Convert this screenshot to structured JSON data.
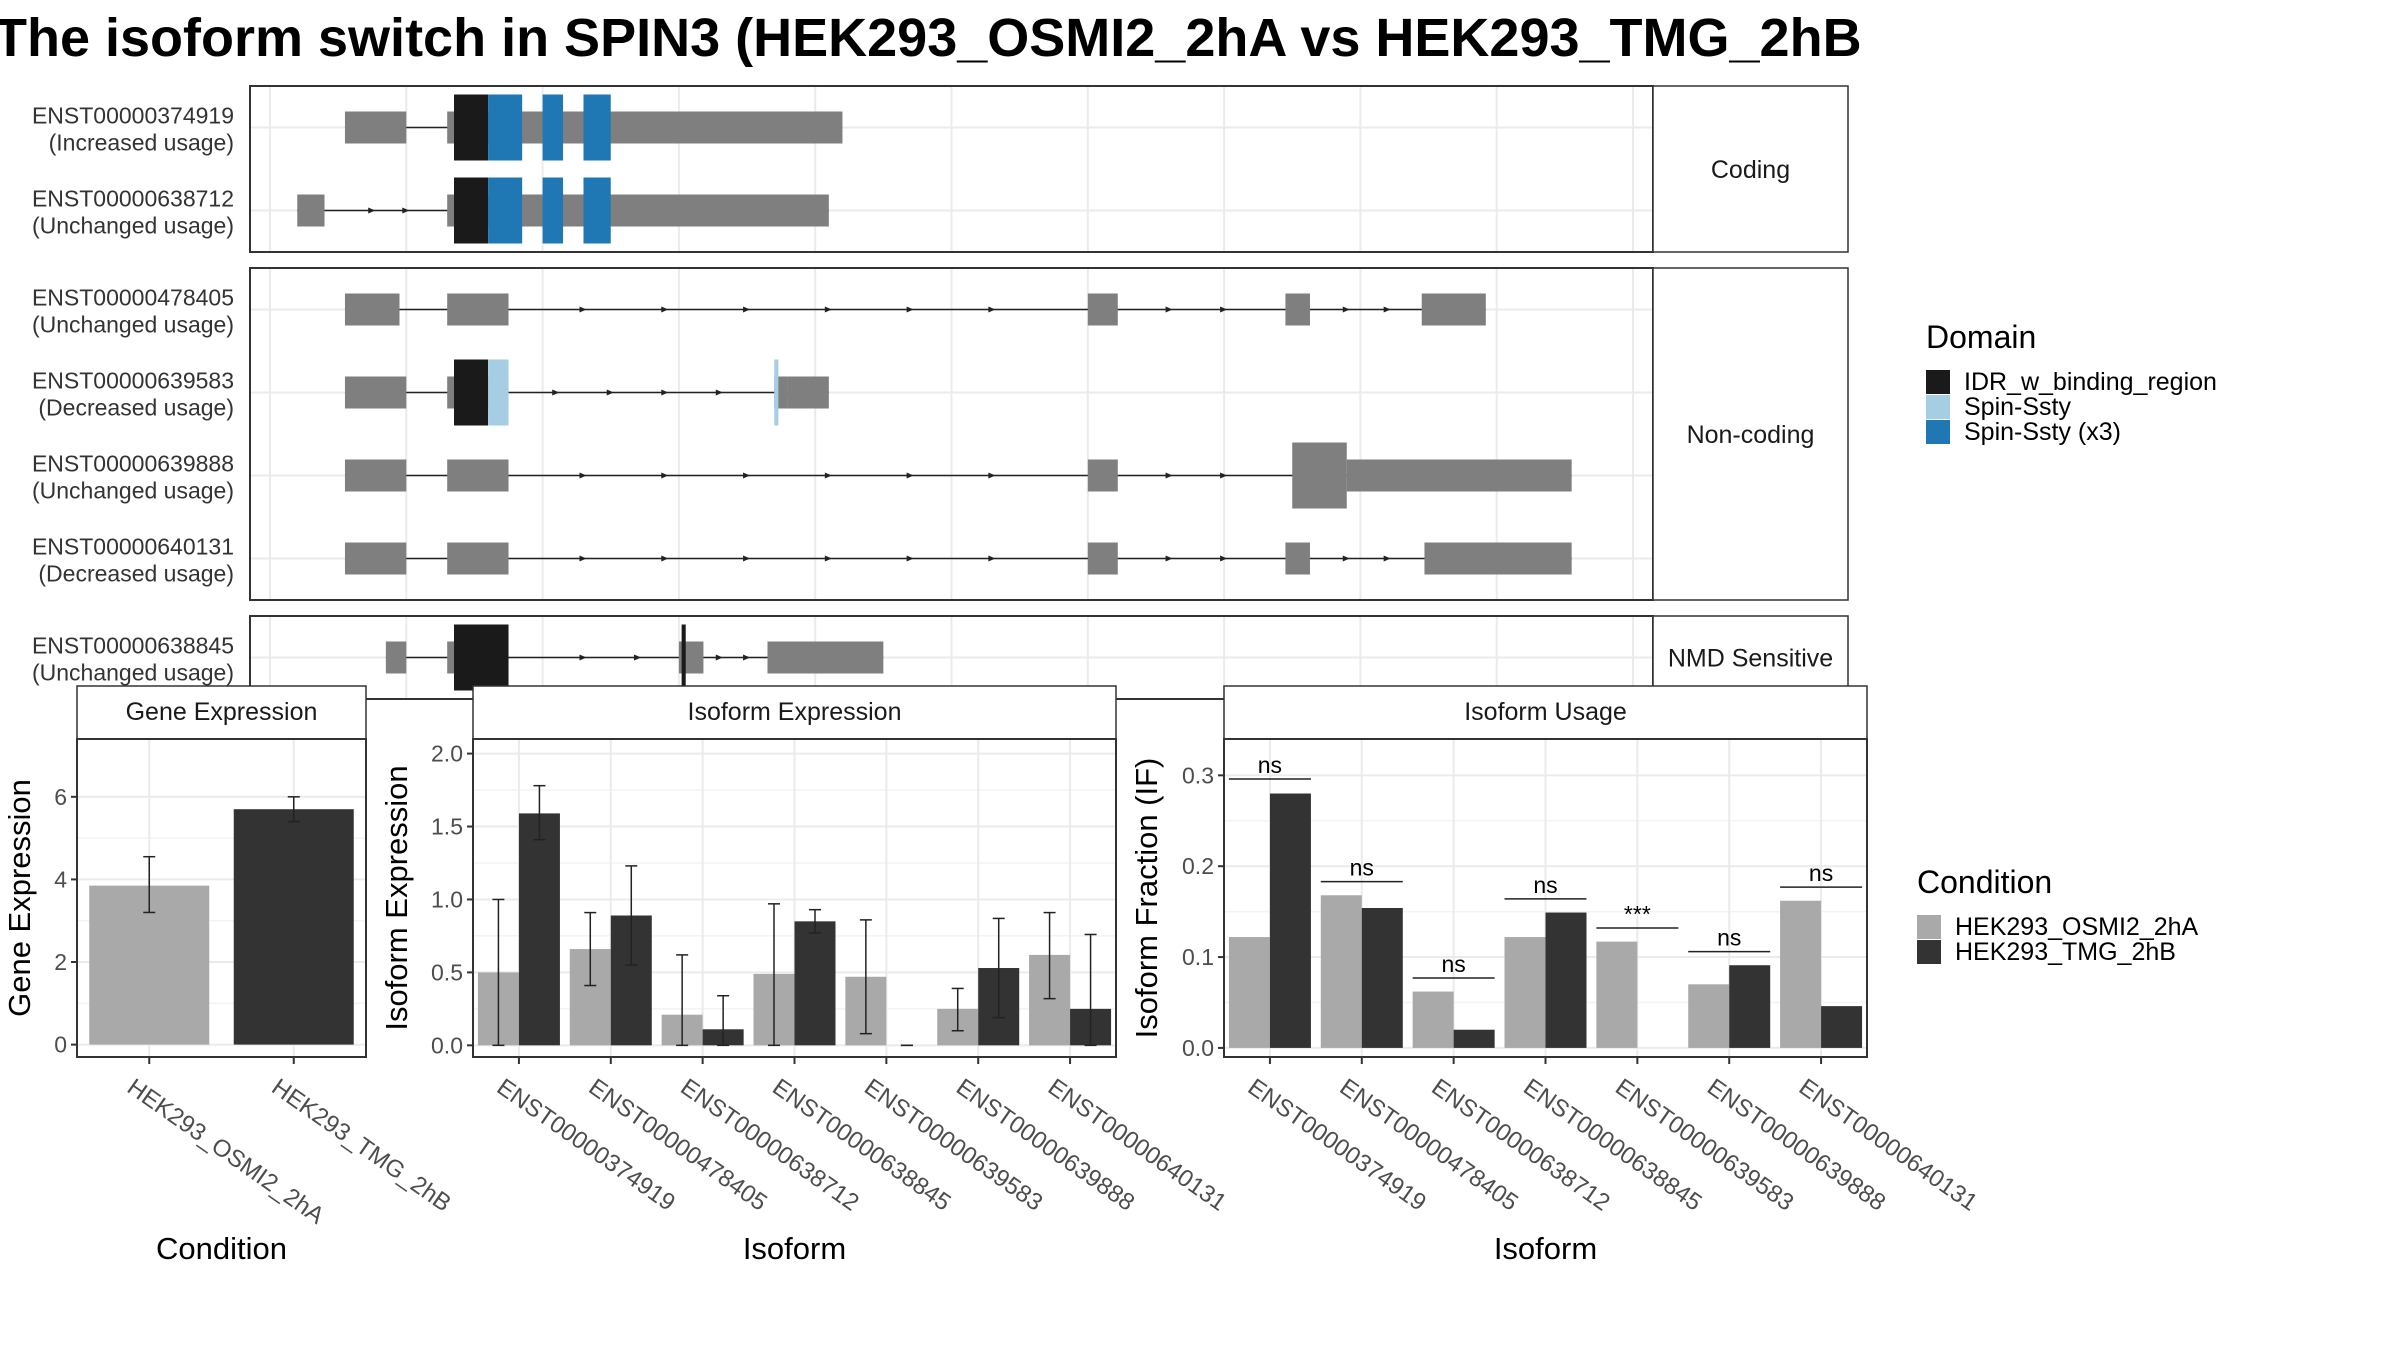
{
  "title": "The isoform switch in SPIN3 (HEK293_OSMI2_2hA vs HEK293_TMG_2hB",
  "colors": {
    "exon": "#7f7f7f",
    "IDR_w_binding_region": "#1a1a1a",
    "Spin-Ssty": "#a6cee3",
    "Spin-Ssty (x3)": "#1f78b4",
    "cond_a": "#a9a9a9",
    "cond_b": "#333333"
  },
  "structure": {
    "x_range": [
      0,
      1000
    ],
    "panels": [
      {
        "label": "Coding",
        "transcripts": [
          {
            "id": "ENST00000374919",
            "usage": "(Increased usage)",
            "exons": [
              [
                55,
                100,
                "n"
              ],
              [
                130,
                420,
                "n"
              ]
            ],
            "domains": [
              [
                135,
                160,
                "IDR_w_binding_region"
              ],
              [
                160,
                185,
                "Spin-Ssty (x3)"
              ],
              [
                200,
                215,
                "Spin-Ssty (x3)"
              ],
              [
                230,
                250,
                "Spin-Ssty (x3)"
              ]
            ],
            "arrows": []
          },
          {
            "id": "ENST00000638712",
            "usage": "(Unchanged usage)",
            "exons": [
              [
                20,
                40,
                "n"
              ],
              [
                130,
                410,
                "n"
              ]
            ],
            "domains": [
              [
                135,
                160,
                "IDR_w_binding_region"
              ],
              [
                160,
                185,
                "Spin-Ssty (x3)"
              ],
              [
                200,
                215,
                "Spin-Ssty (x3)"
              ],
              [
                230,
                250,
                "Spin-Ssty (x3)"
              ]
            ],
            "arrows": [
              75,
              100
            ]
          }
        ]
      },
      {
        "label": "Non-coding",
        "transcripts": [
          {
            "id": "ENST00000478405",
            "usage": "(Unchanged usage)",
            "exons": [
              [
                55,
                95,
                "n"
              ],
              [
                130,
                175,
                "n"
              ],
              [
                600,
                622,
                "n"
              ],
              [
                745,
                763,
                "n"
              ],
              [
                845,
                892,
                "n"
              ]
            ],
            "domains": [],
            "arrows": [
              230,
              290,
              350,
              410,
              470,
              530,
              660,
              700,
              790,
              820
            ]
          },
          {
            "id": "ENST00000639583",
            "usage": "(Decreased usage)",
            "exons": [
              [
                55,
                100,
                "n"
              ],
              [
                130,
                175,
                "n"
              ],
              [
                370,
                380,
                "n"
              ],
              [
                380,
                410,
                "n"
              ]
            ],
            "domains": [
              [
                135,
                160,
                "IDR_w_binding_region"
              ],
              [
                160,
                175,
                "Spin-Ssty"
              ],
              [
                370,
                373,
                "Spin-Ssty"
              ]
            ],
            "arrows": [
              210,
              250,
              290,
              330
            ]
          },
          {
            "id": "ENST00000639888",
            "usage": "(Unchanged usage)",
            "exons": [
              [
                55,
                100,
                "n"
              ],
              [
                130,
                175,
                "n"
              ],
              [
                600,
                622,
                "n"
              ],
              [
                750,
                790,
                "t"
              ],
              [
                790,
                955,
                "n"
              ]
            ],
            "domains": [],
            "arrows": [
              230,
              290,
              350,
              410,
              470,
              530,
              660,
              700
            ]
          },
          {
            "id": "ENST00000640131",
            "usage": "(Decreased usage)",
            "exons": [
              [
                55,
                100,
                "n"
              ],
              [
                130,
                175,
                "n"
              ],
              [
                600,
                622,
                "n"
              ],
              [
                745,
                763,
                "n"
              ],
              [
                847,
                955,
                "n"
              ]
            ],
            "domains": [],
            "arrows": [
              230,
              290,
              350,
              410,
              470,
              530,
              660,
              700,
              790,
              820
            ]
          }
        ]
      },
      {
        "label": "NMD Sensitive",
        "transcripts": [
          {
            "id": "ENST00000638845",
            "usage": "(Unchanged usage)",
            "exons": [
              [
                85,
                100,
                "n"
              ],
              [
                130,
                175,
                "n"
              ],
              [
                300,
                318,
                "n"
              ],
              [
                365,
                450,
                "n"
              ]
            ],
            "domains": [
              [
                135,
                175,
                "IDR_w_binding_region"
              ],
              [
                302,
                305,
                "IDR_w_binding_region"
              ]
            ],
            "arrows": [
              230,
              270,
              330,
              350
            ]
          }
        ]
      }
    ]
  },
  "legend_domain": {
    "title": "Domain",
    "items": [
      {
        "label": "IDR_w_binding_region",
        "color": "#1a1a1a"
      },
      {
        "label": "Spin-Ssty",
        "color": "#a6cee3"
      },
      {
        "label": "Spin-Ssty (x3)",
        "color": "#1f78b4"
      }
    ]
  },
  "legend_condition": {
    "title": "Condition",
    "items": [
      {
        "label": "HEK293_OSMI2_2hA",
        "color": "#a9a9a9"
      },
      {
        "label": "HEK293_TMG_2hB",
        "color": "#333333"
      }
    ]
  },
  "chart_data": [
    {
      "type": "bar",
      "title": "Gene Expression",
      "xlabel": "Condition",
      "ylabel": "Gene Expression",
      "ylim": [
        -0.3,
        7.4
      ],
      "yticks": [
        0,
        2,
        4,
        6
      ],
      "categories": [
        "HEK293_OSMI2_2hA",
        "HEK293_TMG_2hB"
      ],
      "values": [
        3.85,
        5.7
      ],
      "errors": [
        [
          3.2,
          4.55
        ],
        [
          5.4,
          6.0
        ]
      ]
    },
    {
      "type": "bar",
      "title": "Isoform Expression",
      "xlabel": "Isoform",
      "ylabel": "Isoform Expression",
      "ylim": [
        -0.08,
        2.1
      ],
      "yticks": [
        0.0,
        0.5,
        1.0,
        1.5,
        2.0
      ],
      "categories": [
        "ENST00000374919",
        "ENST00000478405",
        "ENST00000638712",
        "ENST00000638845",
        "ENST00000639583",
        "ENST00000639888",
        "ENST00000640131"
      ],
      "series": [
        {
          "name": "HEK293_OSMI2_2hA",
          "values": [
            0.5,
            0.66,
            0.21,
            0.49,
            0.47,
            0.25,
            0.62
          ],
          "errors": [
            [
              0.0,
              1.0
            ],
            [
              0.41,
              0.91
            ],
            [
              0.0,
              0.62
            ],
            [
              0.0,
              0.97
            ],
            [
              0.08,
              0.86
            ],
            [
              0.1,
              0.39
            ],
            [
              0.32,
              0.91
            ]
          ]
        },
        {
          "name": "HEK293_TMG_2hB",
          "values": [
            1.59,
            0.89,
            0.11,
            0.85,
            0.0,
            0.53,
            0.25
          ],
          "errors": [
            [
              1.41,
              1.78
            ],
            [
              0.55,
              1.23
            ],
            [
              0.0,
              0.34
            ],
            [
              0.77,
              0.93
            ],
            [
              0.0,
              0.0
            ],
            [
              0.19,
              0.87
            ],
            [
              0.0,
              0.76
            ]
          ]
        }
      ]
    },
    {
      "type": "bar",
      "title": "Isoform Usage",
      "xlabel": "Isoform",
      "ylabel": "Isoform Fraction (IF)",
      "ylim": [
        -0.01,
        0.34
      ],
      "yticks": [
        0.0,
        0.1,
        0.2,
        0.3
      ],
      "categories": [
        "ENST00000374919",
        "ENST00000478405",
        "ENST00000638712",
        "ENST00000638845",
        "ENST00000639583",
        "ENST00000639888",
        "ENST00000640131"
      ],
      "series": [
        {
          "name": "HEK293_OSMI2_2hA",
          "values": [
            0.122,
            0.168,
            0.062,
            0.122,
            0.117,
            0.07,
            0.162
          ]
        },
        {
          "name": "HEK293_TMG_2hB",
          "values": [
            0.28,
            0.154,
            0.02,
            0.149,
            0.0,
            0.091,
            0.046
          ]
        }
      ],
      "significance": [
        {
          "label": "ns",
          "y": 0.296
        },
        {
          "label": "ns",
          "y": 0.183
        },
        {
          "label": "ns",
          "y": 0.077
        },
        {
          "label": "ns",
          "y": 0.164
        },
        {
          "label": "***",
          "y": 0.132
        },
        {
          "label": "ns",
          "y": 0.106
        },
        {
          "label": "ns",
          "y": 0.177
        }
      ]
    }
  ]
}
